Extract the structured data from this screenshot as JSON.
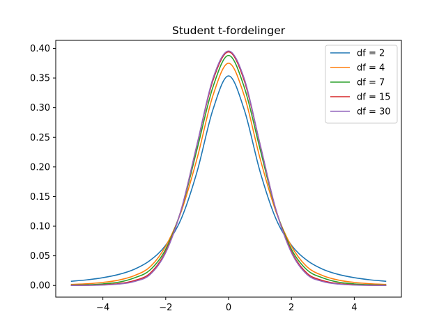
{
  "chart_data": {
    "type": "line",
    "title": "Student t-fordelinger",
    "xlabel": "",
    "ylabel": "",
    "xlim": [
      -5.5,
      5.5
    ],
    "ylim": [
      -0.0197,
      0.4135
    ],
    "x_ticks": [
      -4,
      -2,
      0,
      2,
      4
    ],
    "x_tick_labels": [
      "−4",
      "−2",
      "0",
      "2",
      "4"
    ],
    "y_ticks": [
      0.0,
      0.05,
      0.1,
      0.15,
      0.2,
      0.25,
      0.3,
      0.35,
      0.4
    ],
    "y_tick_labels": [
      "0.00",
      "0.05",
      "0.10",
      "0.15",
      "0.20",
      "0.25",
      "0.30",
      "0.35",
      "0.40"
    ],
    "grid": false,
    "legend_position": "top-right",
    "x": [
      -5,
      -4.5,
      -4,
      -3.5,
      -3,
      -2.5,
      -2,
      -1.5,
      -1,
      -0.5,
      0,
      0.5,
      1,
      1.5,
      2,
      2.5,
      3,
      3.5,
      4,
      4.5,
      5
    ],
    "series": [
      {
        "name": "df = 2",
        "color": "#1f77b4",
        "values": [
          0.0071,
          0.0095,
          0.0131,
          0.0185,
          0.0273,
          0.0422,
          0.068,
          0.1134,
          0.1925,
          0.2962,
          0.3536,
          0.2962,
          0.1925,
          0.1134,
          0.068,
          0.0422,
          0.0273,
          0.0185,
          0.0131,
          0.0095,
          0.0071
        ]
      },
      {
        "name": "df = 4",
        "color": "#ff7f0e",
        "values": [
          0.0018,
          0.0029,
          0.0051,
          0.009,
          0.0166,
          0.0313,
          0.0663,
          0.1258,
          0.2147,
          0.32,
          0.375,
          0.32,
          0.2147,
          0.1258,
          0.0663,
          0.0313,
          0.0166,
          0.009,
          0.0051,
          0.0029,
          0.0018
        ]
      },
      {
        "name": "df = 7",
        "color": "#2ca02c",
        "values": [
          0.0006,
          0.0012,
          0.0026,
          0.0055,
          0.0128,
          0.026,
          0.0612,
          0.1285,
          0.2304,
          0.3343,
          0.388,
          0.3343,
          0.2304,
          0.1285,
          0.0612,
          0.026,
          0.0128,
          0.0055,
          0.0026,
          0.0012,
          0.0006
        ]
      },
      {
        "name": "df = 15",
        "color": "#d62728",
        "values": [
          0.0001,
          0.0003,
          0.0011,
          0.003,
          0.0082,
          0.0204,
          0.0573,
          0.129,
          0.2385,
          0.3454,
          0.394,
          0.3454,
          0.2385,
          0.129,
          0.0573,
          0.0204,
          0.0082,
          0.003,
          0.0011,
          0.0003,
          0.0001
        ]
      },
      {
        "name": "df = 30",
        "color": "#9467bd",
        "values": [
          0.0,
          0.0002,
          0.0007,
          0.0023,
          0.0066,
          0.0183,
          0.0554,
          0.1292,
          0.2387,
          0.3486,
          0.3956,
          0.3486,
          0.2387,
          0.1292,
          0.0554,
          0.0183,
          0.0066,
          0.0023,
          0.0007,
          0.0002,
          0.0
        ]
      }
    ]
  }
}
